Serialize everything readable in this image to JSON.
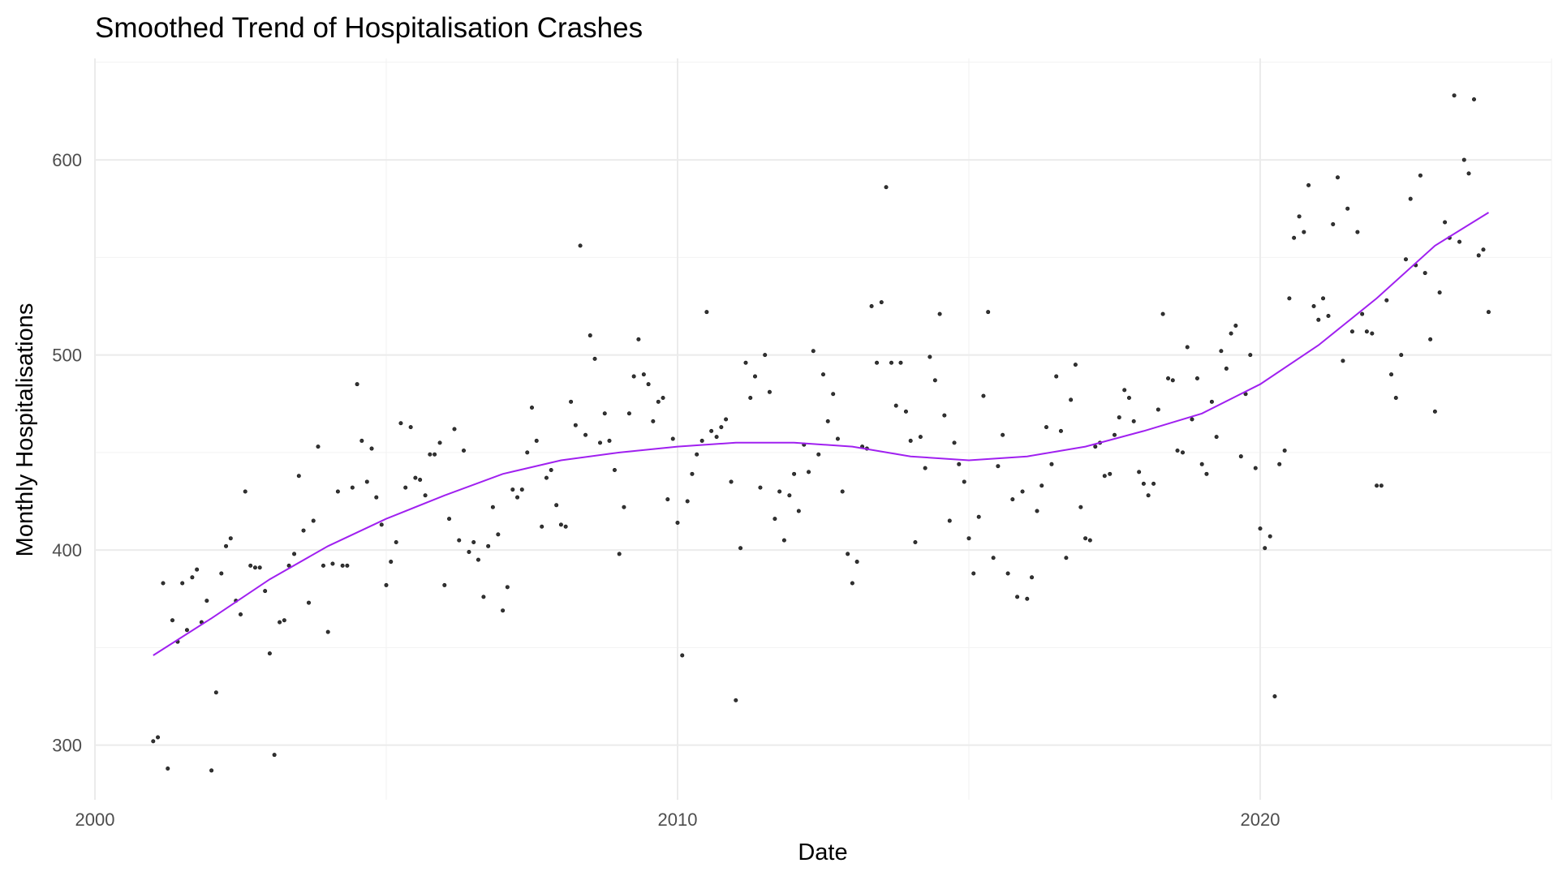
{
  "chart_data": {
    "type": "scatter",
    "title": "Smoothed Trend of Hospitalisation Crashes",
    "xlabel": "Date",
    "ylabel": "Monthly Hospitalisations",
    "xlim": [
      2000,
      2025
    ],
    "ylim": [
      272,
      652
    ],
    "x_ticks": [
      2000,
      2010,
      2020
    ],
    "x_tick_labels": [
      "2000",
      "2010",
      "2020"
    ],
    "y_ticks": [
      300,
      400,
      500,
      600
    ],
    "y_tick_labels": [
      "300",
      "400",
      "500",
      "600"
    ],
    "grid": true,
    "colors": {
      "smooth_line": "#a020f0",
      "points": "#333333"
    },
    "series": [
      {
        "type": "scatter",
        "x": [
          2001.0,
          2001.08,
          2001.17,
          2001.25,
          2001.33,
          2001.42,
          2001.5,
          2001.58,
          2001.67,
          2001.75,
          2001.83,
          2001.92,
          2002.0,
          2002.08,
          2002.17,
          2002.25,
          2002.33,
          2002.42,
          2002.5,
          2002.58,
          2002.67,
          2002.75,
          2002.83,
          2002.92,
          2003.0,
          2003.08,
          2003.17,
          2003.25,
          2003.33,
          2003.42,
          2003.5,
          2003.58,
          2003.67,
          2003.75,
          2003.83,
          2003.92,
          2004.0,
          2004.08,
          2004.17,
          2004.25,
          2004.33,
          2004.42,
          2004.5,
          2004.58,
          2004.67,
          2004.75,
          2004.83,
          2004.92,
          2005.0,
          2005.08,
          2005.17,
          2005.25,
          2005.33,
          2005.42,
          2005.5,
          2005.58,
          2005.67,
          2005.75,
          2005.83,
          2005.92,
          2006.0,
          2006.08,
          2006.17,
          2006.25,
          2006.33,
          2006.42,
          2006.5,
          2006.58,
          2006.67,
          2006.75,
          2006.83,
          2006.92,
          2007.0,
          2007.08,
          2007.17,
          2007.25,
          2007.33,
          2007.42,
          2007.5,
          2007.58,
          2007.67,
          2007.75,
          2007.83,
          2007.92,
          2008.0,
          2008.08,
          2008.17,
          2008.25,
          2008.33,
          2008.42,
          2008.5,
          2008.58,
          2008.67,
          2008.75,
          2008.83,
          2008.92,
          2009.0,
          2009.08,
          2009.17,
          2009.25,
          2009.33,
          2009.42,
          2009.5,
          2009.58,
          2009.67,
          2009.75,
          2009.83,
          2009.92,
          2010.0,
          2010.08,
          2010.17,
          2010.25,
          2010.33,
          2010.42,
          2010.5,
          2010.58,
          2010.67,
          2010.75,
          2010.83,
          2010.92,
          2011.0,
          2011.08,
          2011.17,
          2011.25,
          2011.33,
          2011.42,
          2011.5,
          2011.58,
          2011.67,
          2011.75,
          2011.83,
          2011.92,
          2012.0,
          2012.08,
          2012.17,
          2012.25,
          2012.33,
          2012.42,
          2012.5,
          2012.58,
          2012.67,
          2012.75,
          2012.83,
          2012.92,
          2013.0,
          2013.08,
          2013.17,
          2013.25,
          2013.33,
          2013.42,
          2013.5,
          2013.58,
          2013.67,
          2013.75,
          2013.83,
          2013.92,
          2014.0,
          2014.08,
          2014.17,
          2014.25,
          2014.33,
          2014.42,
          2014.5,
          2014.58,
          2014.67,
          2014.75,
          2014.83,
          2014.92,
          2015.0,
          2015.08,
          2015.17,
          2015.25,
          2015.33,
          2015.42,
          2015.5,
          2015.58,
          2015.67,
          2015.75,
          2015.83,
          2015.92,
          2016.0,
          2016.08,
          2016.17,
          2016.25,
          2016.33,
          2016.42,
          2016.5,
          2016.58,
          2016.67,
          2016.75,
          2016.83,
          2016.92,
          2017.0,
          2017.08,
          2017.17,
          2017.25,
          2017.33,
          2017.42,
          2017.5,
          2017.58,
          2017.67,
          2017.75,
          2017.83,
          2017.92,
          2018.0,
          2018.08,
          2018.17,
          2018.25,
          2018.33,
          2018.42,
          2018.5,
          2018.58,
          2018.67,
          2018.75,
          2018.83,
          2018.92,
          2019.0,
          2019.08,
          2019.17,
          2019.25,
          2019.33,
          2019.42,
          2019.5,
          2019.58,
          2019.67,
          2019.75,
          2019.83,
          2019.92,
          2020.0,
          2020.08,
          2020.17,
          2020.25,
          2020.33,
          2020.42,
          2020.5,
          2020.58,
          2020.67,
          2020.75,
          2020.83,
          2020.92,
          2021.0,
          2021.08,
          2021.17,
          2021.25,
          2021.33,
          2021.42,
          2021.5,
          2021.58,
          2021.67,
          2021.75,
          2021.83,
          2021.92,
          2022.0,
          2022.08,
          2022.17,
          2022.25,
          2022.33,
          2022.42,
          2022.5,
          2022.58,
          2022.67,
          2022.75,
          2022.83,
          2022.92,
          2023.0,
          2023.08,
          2023.17,
          2023.25,
          2023.33,
          2023.42,
          2023.5,
          2023.58,
          2023.67,
          2023.75,
          2023.83,
          2023.92
        ],
        "y": [
          302,
          304,
          383,
          288,
          364,
          353,
          383,
          359,
          386,
          390,
          363,
          374,
          287,
          327,
          388,
          402,
          406,
          374,
          367,
          430,
          392,
          391,
          391,
          379,
          347,
          295,
          363,
          364,
          392,
          398,
          438,
          410,
          373,
          415,
          453,
          392,
          358,
          393,
          430,
          392,
          392,
          432,
          485,
          456,
          435,
          452,
          427,
          413,
          382,
          394,
          404,
          465,
          432,
          463,
          437,
          436,
          428,
          449,
          449,
          455,
          382,
          416,
          462,
          405,
          451,
          399,
          404,
          395,
          376,
          402,
          422,
          408,
          369,
          381,
          431,
          427,
          431,
          450,
          473,
          456,
          412,
          437,
          441,
          423,
          413,
          412,
          476,
          464,
          556,
          459,
          510,
          498,
          455,
          470,
          456,
          441,
          398,
          422,
          470,
          489,
          508,
          490,
          485,
          466,
          476,
          478,
          426,
          457,
          414,
          346,
          425,
          439,
          449,
          456,
          522,
          461,
          458,
          463,
          467,
          435,
          323,
          401,
          496,
          478,
          489,
          432,
          500,
          481,
          416,
          430,
          405,
          428,
          439,
          420,
          454,
          440,
          502,
          449,
          490,
          466,
          480,
          457,
          430,
          398,
          383,
          394,
          453,
          452,
          525,
          496,
          527,
          586,
          496,
          474,
          496,
          471,
          456,
          404,
          458,
          442,
          499,
          487,
          521,
          469,
          415,
          455,
          444,
          435,
          406,
          388,
          417,
          479,
          522,
          396,
          443,
          459,
          388,
          426,
          376,
          430,
          375,
          386,
          420,
          433,
          463,
          444,
          489,
          461,
          396,
          477,
          495,
          422,
          406,
          405,
          453,
          455,
          438,
          439,
          459,
          468,
          482,
          478,
          466,
          440,
          434,
          428,
          434,
          472,
          521,
          488,
          487,
          451,
          450,
          504,
          467,
          488,
          444,
          439,
          476,
          458,
          502,
          493,
          511,
          515,
          448,
          480,
          500,
          442,
          411,
          401,
          407,
          325,
          444,
          451,
          529,
          560,
          571,
          563,
          587,
          525,
          518,
          529,
          520,
          567,
          591,
          497,
          575,
          512,
          563,
          521,
          512,
          511,
          433,
          433,
          528,
          490,
          478,
          500,
          549,
          580,
          546,
          592,
          542,
          508,
          471,
          532,
          568,
          560,
          633,
          558,
          600,
          593,
          631,
          551,
          554,
          522
        ]
      },
      {
        "type": "line",
        "x": [
          2001.0,
          2002.0,
          2003.0,
          2004.0,
          2005.0,
          2006.0,
          2007.0,
          2008.0,
          2009.0,
          2010.0,
          2011.0,
          2012.0,
          2013.0,
          2014.0,
          2015.0,
          2016.0,
          2017.0,
          2018.0,
          2019.0,
          2020.0,
          2021.0,
          2022.0,
          2023.0,
          2023.92
        ],
        "y": [
          346,
          365,
          385,
          402,
          416,
          428,
          439,
          446,
          450,
          453,
          455,
          455,
          453,
          448,
          446,
          448,
          453,
          461,
          470,
          485,
          505,
          529,
          556,
          573
        ]
      }
    ]
  }
}
